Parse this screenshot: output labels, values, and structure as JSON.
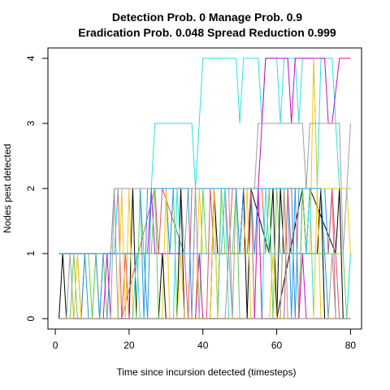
{
  "chart_data": {
    "type": "line",
    "title_line1": "Detection Prob. 0 Manage Prob. 0.9",
    "title_line2": "Eradication Prob. 0.048 Spread Reduction 0.999",
    "xlabel": "Time since incursion detected (timesteps)",
    "ylabel": "Nodes pest detected",
    "xlim": [
      -2,
      83
    ],
    "ylim": [
      -0.16,
      4.16
    ],
    "x_ticks": [
      0,
      20,
      40,
      60,
      80
    ],
    "y_ticks": [
      0,
      1,
      2,
      3,
      4
    ],
    "x_tick_labels": [
      "0",
      "20",
      "40",
      "60",
      "80"
    ],
    "y_tick_labels": [
      "0",
      "1",
      "2",
      "3",
      "4"
    ],
    "grid": false,
    "legend": "none",
    "series": [
      {
        "color": "#000000",
        "x": [
          1,
          2,
          3,
          20,
          21,
          22,
          42,
          43,
          44,
          50,
          51,
          52,
          53,
          58,
          59,
          60,
          67,
          68,
          69,
          76,
          77,
          78,
          80
        ],
        "y": [
          0,
          1,
          0,
          0,
          2,
          0,
          0,
          2,
          1,
          1,
          2,
          0,
          2,
          1,
          2,
          0,
          2,
          1,
          2,
          1,
          2,
          0,
          0
        ]
      },
      {
        "color": "#df536b",
        "x": [
          1,
          6,
          7,
          8,
          16,
          17,
          18,
          27,
          28,
          29,
          35,
          36,
          37,
          46,
          47,
          48,
          56,
          57,
          58,
          65,
          66,
          67,
          75,
          76,
          77,
          80
        ],
        "y": [
          1,
          1,
          0,
          1,
          1,
          2,
          0,
          2,
          1,
          2,
          1,
          0,
          2,
          2,
          1,
          2,
          2,
          1,
          2,
          2,
          0,
          2,
          2,
          1,
          0,
          0
        ]
      },
      {
        "color": "#61d04f",
        "x": [
          1,
          4,
          5,
          6,
          12,
          13,
          14,
          22,
          23,
          24,
          31,
          32,
          33,
          39,
          40,
          41,
          48,
          49,
          50,
          59,
          60,
          61,
          71,
          72,
          73,
          80
        ],
        "y": [
          0,
          0,
          1,
          0,
          0,
          1,
          0,
          0,
          2,
          1,
          1,
          2,
          0,
          0,
          2,
          1,
          1,
          2,
          0,
          0,
          2,
          1,
          1,
          2,
          0,
          0
        ]
      },
      {
        "color": "#2297e6",
        "x": [
          1,
          7,
          8,
          9,
          14,
          15,
          16,
          23,
          24,
          25,
          30,
          31,
          32,
          43,
          44,
          45,
          53,
          54,
          55,
          63,
          64,
          65,
          73,
          74,
          75,
          80
        ],
        "y": [
          0,
          0,
          1,
          0,
          0,
          1,
          2,
          2,
          0,
          2,
          2,
          1,
          2,
          2,
          0,
          2,
          2,
          1,
          2,
          2,
          0,
          2,
          2,
          1,
          2,
          2
        ]
      },
      {
        "color": "#28e2e5",
        "x": [
          1,
          16,
          17,
          26,
          27,
          37,
          38,
          39,
          40,
          49,
          50,
          51,
          55,
          56,
          57,
          60,
          61,
          62,
          65,
          66,
          67,
          70,
          71,
          72,
          75,
          76,
          77,
          80
        ],
        "y": [
          1,
          1,
          2,
          2,
          3,
          3,
          2,
          3,
          4,
          4,
          3,
          4,
          4,
          3,
          4,
          4,
          3,
          4,
          4,
          3,
          4,
          4,
          2,
          4,
          4,
          3,
          2,
          2
        ]
      },
      {
        "color": "#cd0bbc",
        "x": [
          1,
          25,
          26,
          27,
          45,
          46,
          47,
          55,
          56,
          57,
          63,
          64,
          65,
          73,
          74,
          75,
          77,
          78,
          80
        ],
        "y": [
          1,
          1,
          2,
          1,
          1,
          2,
          2,
          2,
          3,
          4,
          4,
          3,
          4,
          4,
          3,
          3,
          4,
          4,
          4
        ]
      },
      {
        "color": "#f5c710",
        "x": [
          1,
          10,
          11,
          12,
          19,
          20,
          21,
          29,
          30,
          31,
          38,
          39,
          40,
          51,
          52,
          53,
          61,
          62,
          63,
          69,
          70,
          71,
          79,
          80
        ],
        "y": [
          0,
          0,
          1,
          0,
          0,
          2,
          0,
          0,
          2,
          0,
          0,
          2,
          1,
          1,
          2,
          0,
          0,
          2,
          1,
          1,
          4,
          2,
          2,
          1
        ]
      },
      {
        "color": "#9e9e9e",
        "x": [
          1,
          15,
          16,
          17,
          34,
          35,
          36,
          47,
          48,
          49,
          54,
          55,
          56,
          67,
          68,
          69,
          77,
          78,
          80
        ],
        "y": [
          1,
          1,
          2,
          2,
          2,
          1,
          2,
          2,
          0,
          2,
          2,
          3,
          3,
          3,
          2,
          3,
          3,
          1,
          3
        ]
      },
      {
        "color": "#000000",
        "x": [
          1,
          28,
          29,
          30,
          33,
          34,
          35,
          60,
          61,
          62,
          71,
          72,
          73,
          80
        ],
        "y": [
          0,
          0,
          1,
          0,
          0,
          2,
          0,
          0,
          2,
          1,
          1,
          2,
          0,
          0
        ]
      },
      {
        "color": "#df536b",
        "x": [
          1,
          18,
          19,
          20,
          41,
          42,
          43,
          52,
          53,
          54,
          62,
          63,
          64,
          74,
          75,
          76,
          80
        ],
        "y": [
          0,
          0,
          1,
          0,
          0,
          2,
          1,
          1,
          2,
          0,
          0,
          2,
          1,
          1,
          2,
          0,
          0
        ]
      },
      {
        "color": "#61d04f",
        "x": [
          1,
          9,
          10,
          11,
          26,
          27,
          28,
          44,
          45,
          46,
          57,
          58,
          59,
          66,
          67,
          68,
          78,
          79,
          80
        ],
        "y": [
          1,
          1,
          0,
          1,
          1,
          2,
          0,
          0,
          2,
          1,
          1,
          2,
          0,
          0,
          2,
          1,
          1,
          0,
          1
        ]
      },
      {
        "color": "#2297e6",
        "x": [
          1,
          11,
          12,
          13,
          24,
          25,
          26,
          36,
          37,
          38,
          49,
          50,
          51,
          64,
          65,
          66,
          72,
          73,
          74,
          80
        ],
        "y": [
          1,
          1,
          0,
          1,
          1,
          0,
          2,
          2,
          0,
          2,
          2,
          1,
          2,
          2,
          0,
          2,
          2,
          1,
          0,
          0
        ]
      },
      {
        "color": "#28e2e5",
        "x": [
          1,
          21,
          22,
          23,
          32,
          33,
          34,
          45,
          46,
          47,
          56,
          57,
          58,
          68,
          69,
          70,
          79,
          80
        ],
        "y": [
          0,
          0,
          1,
          0,
          0,
          2,
          1,
          1,
          2,
          0,
          0,
          2,
          1,
          1,
          2,
          0,
          0,
          1
        ]
      },
      {
        "color": "#cd0bbc",
        "x": [
          1,
          13,
          14,
          15,
          38,
          39,
          40,
          54,
          55,
          56,
          66,
          67,
          68,
          80
        ],
        "y": [
          0,
          0,
          1,
          0,
          0,
          1,
          0,
          0,
          2,
          0,
          0,
          1,
          0,
          0
        ]
      },
      {
        "color": "#f5c710",
        "x": [
          1,
          5,
          6,
          7,
          17,
          18,
          19,
          33,
          34,
          35,
          42,
          43,
          44,
          58,
          59,
          60,
          70,
          71,
          72,
          80
        ],
        "y": [
          0,
          0,
          1,
          0,
          0,
          2,
          0,
          0,
          1,
          0,
          0,
          2,
          0,
          0,
          1,
          0,
          0,
          2,
          0,
          0
        ]
      },
      {
        "color": "#9e9e9e",
        "x": [
          1,
          3,
          4,
          5,
          15,
          16,
          17,
          37,
          38,
          39,
          46,
          47,
          48,
          61,
          62,
          63,
          74,
          75,
          76,
          80
        ],
        "y": [
          0,
          0,
          1,
          0,
          0,
          2,
          0,
          0,
          2,
          0,
          0,
          1,
          0,
          0,
          2,
          0,
          0,
          1,
          0,
          0
        ]
      }
    ]
  }
}
